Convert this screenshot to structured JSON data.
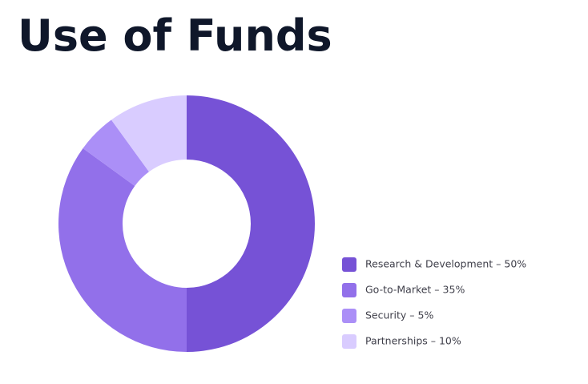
{
  "chart_data": {
    "type": "donut",
    "title": "Use of Funds",
    "categories": [
      "Research & Development – 50%",
      "Go-to-Market – 35%",
      "Security – 5%",
      "Partnerships – 10%"
    ],
    "values": [
      50,
      35,
      5,
      10
    ],
    "colors": [
      "#7652d6",
      "#9270ea",
      "#ab8ff7",
      "#d9ccff"
    ],
    "legend": "right"
  }
}
